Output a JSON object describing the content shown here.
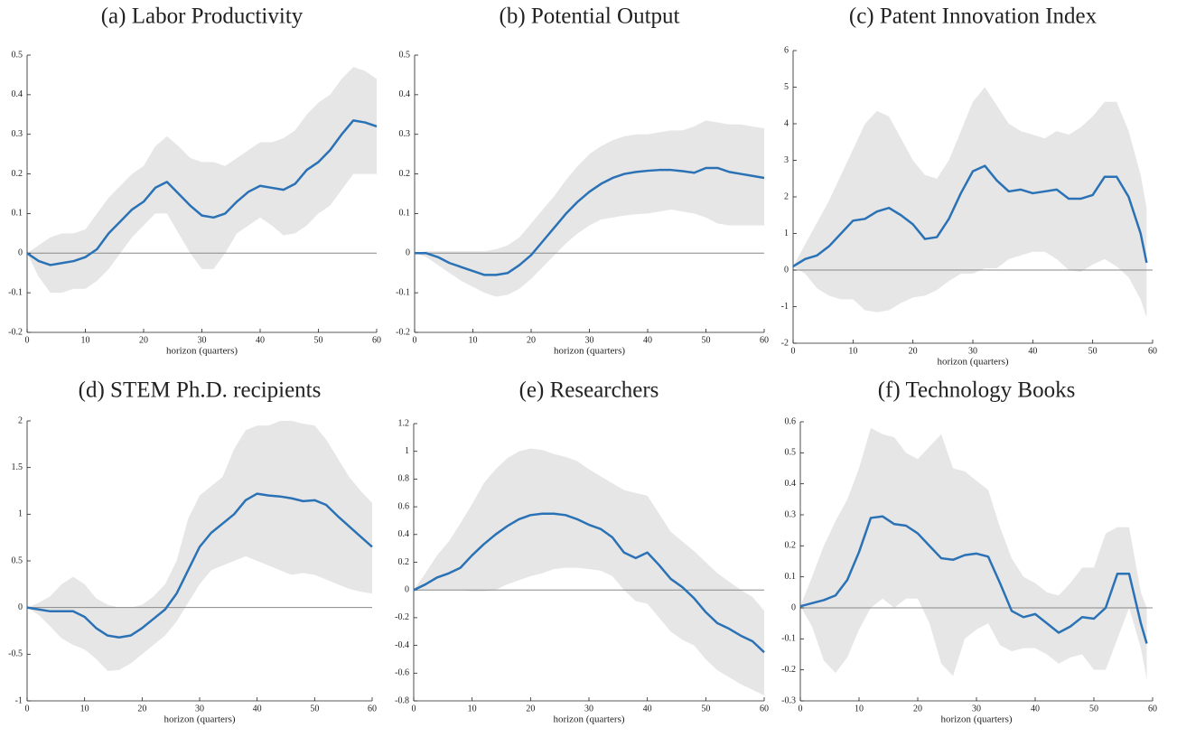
{
  "chart_data": [
    {
      "type": "line",
      "title": "(a) Labor Productivity",
      "xlabel": "horizon (quarters)",
      "color": "#2a72b5",
      "band_color": "#e6e6e6",
      "xlim": [
        0,
        60
      ],
      "xticks": [
        0,
        10,
        20,
        30,
        40,
        50,
        60
      ],
      "ylim": [
        -0.2,
        0.5
      ],
      "yticks": [
        -0.2,
        -0.1,
        0,
        0.1,
        0.2,
        0.3,
        0.4,
        0.5
      ],
      "x": [
        0,
        2,
        4,
        6,
        8,
        10,
        12,
        14,
        16,
        18,
        20,
        22,
        24,
        26,
        28,
        30,
        32,
        34,
        36,
        38,
        40,
        42,
        44,
        46,
        48,
        50,
        52,
        54,
        56,
        58,
        60
      ],
      "values": [
        0,
        -0.02,
        -0.03,
        -0.025,
        -0.02,
        -0.01,
        0.01,
        0.05,
        0.08,
        0.11,
        0.13,
        0.165,
        0.18,
        0.15,
        0.12,
        0.095,
        0.09,
        0.1,
        0.13,
        0.155,
        0.17,
        0.165,
        0.16,
        0.175,
        0.21,
        0.23,
        0.26,
        0.3,
        0.335,
        0.33,
        0.32
      ],
      "lower": [
        0,
        -0.06,
        -0.1,
        -0.1,
        -0.09,
        -0.09,
        -0.07,
        -0.04,
        0,
        0.04,
        0.07,
        0.1,
        0.1,
        0.05,
        0,
        -0.04,
        -0.04,
        0,
        0.05,
        0.07,
        0.09,
        0.07,
        0.045,
        0.05,
        0.07,
        0.1,
        0.12,
        0.16,
        0.2,
        0.2,
        0.2
      ],
      "upper": [
        0,
        0.02,
        0.04,
        0.05,
        0.05,
        0.06,
        0.1,
        0.14,
        0.17,
        0.2,
        0.22,
        0.27,
        0.295,
        0.27,
        0.24,
        0.23,
        0.23,
        0.22,
        0.24,
        0.26,
        0.28,
        0.28,
        0.29,
        0.31,
        0.35,
        0.38,
        0.4,
        0.44,
        0.47,
        0.46,
        0.44
      ]
    },
    {
      "type": "line",
      "title": "(b) Potential Output",
      "xlabel": "horizon (quarters)",
      "color": "#2a72b5",
      "band_color": "#e6e6e6",
      "xlim": [
        0,
        60
      ],
      "xticks": [
        0,
        10,
        20,
        30,
        40,
        50,
        60
      ],
      "ylim": [
        -0.2,
        0.5
      ],
      "yticks": [
        -0.2,
        -0.1,
        0,
        0.1,
        0.2,
        0.3,
        0.4,
        0.5
      ],
      "x": [
        0,
        2,
        4,
        6,
        8,
        10,
        12,
        14,
        16,
        18,
        20,
        22,
        24,
        26,
        28,
        30,
        32,
        34,
        36,
        38,
        40,
        42,
        44,
        46,
        48,
        50,
        52,
        54,
        56,
        58,
        60
      ],
      "values": [
        0,
        0,
        -0.01,
        -0.025,
        -0.035,
        -0.045,
        -0.055,
        -0.055,
        -0.05,
        -0.03,
        -0.005,
        0.03,
        0.065,
        0.1,
        0.13,
        0.155,
        0.175,
        0.19,
        0.2,
        0.205,
        0.208,
        0.21,
        0.21,
        0.207,
        0.203,
        0.215,
        0.215,
        0.205,
        0.2,
        0.195,
        0.19
      ],
      "lower": [
        0,
        -0.01,
        -0.03,
        -0.05,
        -0.07,
        -0.085,
        -0.1,
        -0.11,
        -0.105,
        -0.09,
        -0.065,
        -0.035,
        -0.005,
        0.025,
        0.05,
        0.07,
        0.085,
        0.09,
        0.095,
        0.098,
        0.1,
        0.105,
        0.11,
        0.105,
        0.1,
        0.09,
        0.075,
        0.07,
        0.07,
        0.07,
        0.07
      ],
      "upper": [
        0,
        0.005,
        0.005,
        0.005,
        0.005,
        0.005,
        0.005,
        0.01,
        0.02,
        0.04,
        0.075,
        0.11,
        0.145,
        0.185,
        0.22,
        0.25,
        0.27,
        0.285,
        0.295,
        0.3,
        0.3,
        0.305,
        0.31,
        0.31,
        0.32,
        0.335,
        0.33,
        0.325,
        0.325,
        0.32,
        0.315
      ]
    },
    {
      "type": "line",
      "title": "(c) Patent Innovation Index",
      "xlabel": "horizon (quarters)",
      "color": "#2a72b5",
      "band_color": "#e6e6e6",
      "xlim": [
        0,
        60
      ],
      "xticks": [
        0,
        10,
        20,
        30,
        40,
        50,
        60
      ],
      "ylim": [
        -2,
        6
      ],
      "yticks": [
        -2,
        -1,
        0,
        1,
        2,
        3,
        4,
        5,
        6
      ],
      "x": [
        0,
        2,
        4,
        6,
        8,
        10,
        12,
        14,
        16,
        18,
        20,
        22,
        24,
        26,
        28,
        30,
        32,
        34,
        36,
        38,
        40,
        42,
        44,
        46,
        48,
        50,
        52,
        54,
        56,
        58,
        59
      ],
      "values": [
        0.1,
        0.3,
        0.4,
        0.65,
        1.0,
        1.35,
        1.4,
        1.6,
        1.7,
        1.5,
        1.25,
        0.85,
        0.9,
        1.4,
        2.1,
        2.7,
        2.85,
        2.45,
        2.15,
        2.2,
        2.1,
        2.15,
        2.2,
        1.95,
        1.95,
        2.05,
        2.55,
        2.55,
        2.0,
        1.0,
        0.2
      ],
      "lower": [
        0.1,
        -0.1,
        -0.5,
        -0.7,
        -0.8,
        -0.8,
        -1.1,
        -1.15,
        -1.1,
        -0.9,
        -0.75,
        -0.7,
        -0.55,
        -0.3,
        -0.1,
        -0.1,
        0.05,
        0.05,
        0.3,
        0.4,
        0.5,
        0.5,
        0.3,
        0,
        -0.05,
        0.15,
        0.3,
        0.1,
        -0.2,
        -0.8,
        -1.3
      ],
      "upper": [
        0.1,
        0.7,
        1.3,
        1.9,
        2.6,
        3.3,
        4.0,
        4.35,
        4.2,
        3.6,
        3.0,
        2.6,
        2.5,
        3.0,
        3.8,
        4.6,
        5.0,
        4.5,
        4.0,
        3.8,
        3.7,
        3.6,
        3.8,
        3.7,
        3.9,
        4.2,
        4.6,
        4.6,
        3.8,
        2.6,
        1.7
      ]
    },
    {
      "type": "line",
      "title": "(d) STEM Ph.D. recipients",
      "xlabel": "horizon (quarters)",
      "color": "#2a72b5",
      "band_color": "#e6e6e6",
      "xlim": [
        0,
        60
      ],
      "xticks": [
        0,
        10,
        20,
        30,
        40,
        50,
        60
      ],
      "ylim": [
        -1,
        2
      ],
      "yticks": [
        -1,
        -0.5,
        0,
        0.5,
        1,
        1.5,
        2
      ],
      "x": [
        0,
        2,
        4,
        6,
        8,
        10,
        12,
        14,
        16,
        18,
        20,
        22,
        24,
        26,
        28,
        30,
        32,
        34,
        36,
        38,
        40,
        42,
        44,
        46,
        48,
        50,
        52,
        54,
        56,
        58,
        60
      ],
      "values": [
        0,
        -0.02,
        -0.04,
        -0.04,
        -0.04,
        -0.1,
        -0.22,
        -0.3,
        -0.32,
        -0.3,
        -0.22,
        -0.12,
        -0.02,
        0.15,
        0.4,
        0.65,
        0.8,
        0.9,
        1.0,
        1.15,
        1.22,
        1.2,
        1.19,
        1.17,
        1.14,
        1.15,
        1.1,
        0.98,
        0.87,
        0.76,
        0.65
      ],
      "lower": [
        0,
        -0.08,
        -0.2,
        -0.33,
        -0.4,
        -0.45,
        -0.55,
        -0.68,
        -0.67,
        -0.6,
        -0.5,
        -0.4,
        -0.3,
        -0.15,
        0.05,
        0.25,
        0.4,
        0.45,
        0.5,
        0.55,
        0.5,
        0.45,
        0.4,
        0.35,
        0.37,
        0.35,
        0.3,
        0.25,
        0.2,
        0.17,
        0.15
      ],
      "upper": [
        0,
        0.05,
        0.12,
        0.25,
        0.33,
        0.25,
        0.1,
        0.03,
        0,
        0,
        0.03,
        0.12,
        0.25,
        0.5,
        0.95,
        1.2,
        1.3,
        1.4,
        1.7,
        1.9,
        1.95,
        1.95,
        2.0,
        2.0,
        1.97,
        1.95,
        1.8,
        1.6,
        1.4,
        1.25,
        1.12
      ]
    },
    {
      "type": "line",
      "title": "(e) Researchers",
      "xlabel": "horizon (quarters)",
      "color": "#2a72b5",
      "band_color": "#e6e6e6",
      "xlim": [
        0,
        60
      ],
      "xticks": [
        0,
        10,
        20,
        30,
        40,
        50,
        60
      ],
      "ylim": [
        -0.8,
        1.2
      ],
      "yticks": [
        -0.8,
        -0.6,
        -0.4,
        -0.2,
        0,
        0.2,
        0.4,
        0.6,
        0.8,
        1,
        1.2
      ],
      "x": [
        0,
        2,
        4,
        6,
        8,
        10,
        12,
        14,
        16,
        18,
        20,
        22,
        24,
        26,
        28,
        30,
        32,
        34,
        36,
        38,
        40,
        42,
        44,
        46,
        48,
        50,
        52,
        54,
        56,
        58,
        60
      ],
      "values": [
        0,
        0.04,
        0.09,
        0.12,
        0.16,
        0.25,
        0.33,
        0.4,
        0.46,
        0.51,
        0.54,
        0.55,
        0.55,
        0.54,
        0.51,
        0.47,
        0.44,
        0.38,
        0.27,
        0.23,
        0.27,
        0.18,
        0.08,
        0.02,
        -0.06,
        -0.16,
        -0.24,
        -0.28,
        -0.33,
        -0.37,
        -0.45
      ],
      "lower": [
        0,
        0,
        0,
        0,
        0,
        -0.01,
        -0.01,
        0,
        0.04,
        0.07,
        0.1,
        0.12,
        0.15,
        0.16,
        0.16,
        0.15,
        0.14,
        0.1,
        0,
        -0.08,
        -0.1,
        -0.2,
        -0.3,
        -0.36,
        -0.4,
        -0.5,
        -0.58,
        -0.63,
        -0.68,
        -0.72,
        -0.76
      ],
      "upper": [
        0,
        0.12,
        0.25,
        0.35,
        0.48,
        0.62,
        0.77,
        0.87,
        0.95,
        1.0,
        1.02,
        1.01,
        0.98,
        0.96,
        0.93,
        0.87,
        0.82,
        0.77,
        0.72,
        0.7,
        0.68,
        0.55,
        0.42,
        0.35,
        0.28,
        0.2,
        0.12,
        0.06,
        0,
        -0.05,
        -0.15
      ]
    },
    {
      "type": "line",
      "title": "(f) Technology Books",
      "xlabel": "horizon (quarters)",
      "color": "#2a72b5",
      "band_color": "#e6e6e6",
      "xlim": [
        0,
        60
      ],
      "xticks": [
        0,
        10,
        20,
        30,
        40,
        50,
        60
      ],
      "ylim": [
        -0.3,
        0.6
      ],
      "yticks": [
        -0.3,
        -0.2,
        -0.1,
        0,
        0.1,
        0.2,
        0.3,
        0.4,
        0.5,
        0.6
      ],
      "x": [
        0,
        2,
        4,
        6,
        8,
        10,
        12,
        14,
        16,
        18,
        20,
        22,
        24,
        26,
        28,
        30,
        32,
        34,
        36,
        38,
        40,
        42,
        44,
        46,
        48,
        50,
        52,
        54,
        56,
        58,
        59
      ],
      "values": [
        0.005,
        0.015,
        0.025,
        0.04,
        0.09,
        0.18,
        0.29,
        0.295,
        0.27,
        0.265,
        0.24,
        0.2,
        0.16,
        0.155,
        0.17,
        0.175,
        0.165,
        0.08,
        -0.01,
        -0.03,
        -0.02,
        -0.05,
        -0.08,
        -0.06,
        -0.03,
        -0.035,
        0,
        0.11,
        0.11,
        -0.05,
        -0.115
      ],
      "lower": [
        0.005,
        -0.06,
        -0.17,
        -0.21,
        -0.16,
        -0.07,
        0,
        0.03,
        0,
        0.03,
        0.03,
        -0.05,
        -0.18,
        -0.22,
        -0.1,
        -0.07,
        -0.05,
        -0.12,
        -0.14,
        -0.13,
        -0.13,
        -0.15,
        -0.18,
        -0.16,
        -0.15,
        -0.2,
        -0.2,
        -0.1,
        0,
        -0.13,
        -0.23
      ],
      "upper": [
        0.005,
        0.1,
        0.2,
        0.28,
        0.35,
        0.45,
        0.58,
        0.56,
        0.55,
        0.5,
        0.48,
        0.52,
        0.56,
        0.45,
        0.44,
        0.41,
        0.38,
        0.26,
        0.16,
        0.1,
        0.08,
        0.05,
        0.04,
        0.08,
        0.13,
        0.13,
        0.24,
        0.26,
        0.26,
        0.05,
        0
      ]
    }
  ]
}
